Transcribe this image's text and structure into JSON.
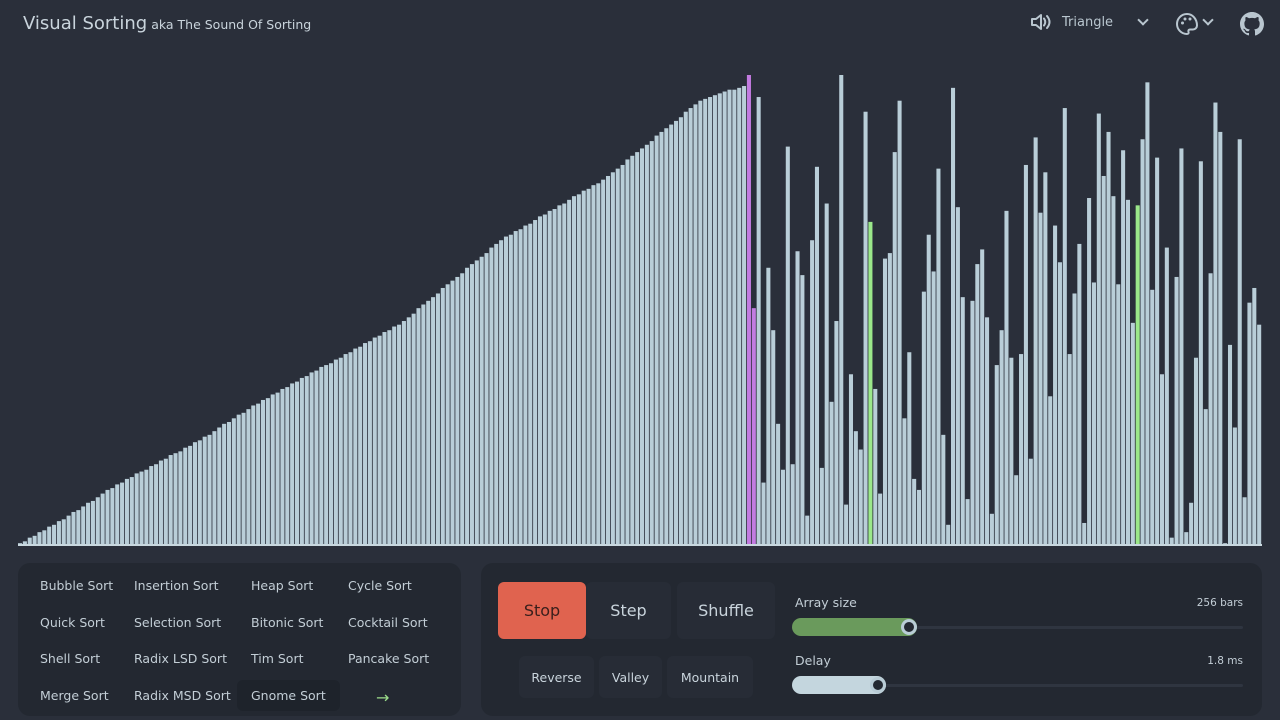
{
  "header": {
    "title": "Visual Sorting",
    "subtitle": "aka The Sound Of Sorting",
    "waveform": "Triangle",
    "icons": [
      "speaker-icon",
      "chevron-down-icon",
      "palette-icon",
      "github-icon"
    ]
  },
  "colors": {
    "background": "#2a2f3a",
    "bar": "#b9ced8",
    "compare": "#c27be0",
    "swap": "#9be88a",
    "stop": "#e0634f",
    "array_slider": "#6a9a5c"
  },
  "visualization": {
    "values": [
      1,
      2,
      4,
      5,
      7,
      8,
      10,
      11,
      13,
      14,
      16,
      18,
      19,
      21,
      23,
      24,
      26,
      28,
      30,
      31,
      33,
      34,
      36,
      37,
      39,
      40,
      41,
      43,
      44,
      46,
      47,
      49,
      50,
      51,
      53,
      54,
      56,
      57,
      59,
      60,
      62,
      64,
      66,
      67,
      69,
      71,
      72,
      74,
      76,
      77,
      79,
      80,
      82,
      83,
      85,
      86,
      88,
      89,
      91,
      92,
      94,
      95,
      97,
      98,
      99,
      101,
      102,
      104,
      105,
      107,
      108,
      110,
      111,
      113,
      114,
      116,
      117,
      119,
      120,
      122,
      124,
      126,
      129,
      131,
      133,
      135,
      137,
      140,
      142,
      144,
      146,
      148,
      151,
      153,
      155,
      157,
      159,
      162,
      164,
      166,
      168,
      169,
      171,
      172,
      174,
      175,
      177,
      179,
      180,
      182,
      183,
      185,
      186,
      188,
      190,
      191,
      193,
      194,
      196,
      197,
      199,
      201,
      203,
      205,
      207,
      210,
      212,
      214,
      216,
      218,
      220,
      223,
      225,
      227,
      229,
      231,
      233,
      236,
      238,
      240,
      242,
      243,
      244,
      245,
      246,
      247,
      248,
      248,
      249,
      250,
      256,
      129,
      244,
      34,
      151,
      117,
      66,
      41,
      217,
      44,
      160,
      147,
      16,
      166,
      206,
      42,
      186,
      78,
      122,
      256,
      22,
      93,
      62,
      52,
      236,
      176,
      85,
      28,
      156,
      159,
      214,
      242,
      69,
      105,
      36,
      30,
      138,
      169,
      149,
      205,
      60,
      11,
      249,
      184,
      135,
      25,
      133,
      153,
      161,
      124,
      17,
      98,
      117,
      182,
      102,
      38,
      104,
      207,
      47,
      222,
      181,
      203,
      81,
      174,
      154,
      238,
      104,
      137,
      164,
      12,
      189,
      143,
      235,
      201,
      225,
      190,
      142,
      215,
      188,
      121,
      185,
      221,
      252,
      139,
      211,
      93,
      162,
      4,
      146,
      216,
      7,
      23,
      102,
      209,
      74,
      148,
      241,
      225,
      1,
      109,
      64,
      221,
      26,
      132,
      140,
      120
    ],
    "max": 256,
    "purple_indices": [
      150,
      151
    ],
    "green_indices": [
      175,
      230
    ]
  },
  "sorts": {
    "items": [
      "Bubble Sort",
      "Insertion Sort",
      "Heap Sort",
      "Cycle Sort",
      "Quick Sort",
      "Selection Sort",
      "Bitonic Sort",
      "Cocktail Sort",
      "Shell Sort",
      "Radix LSD Sort",
      "Tim Sort",
      "Pancake Sort",
      "Merge Sort",
      "Radix MSD Sort",
      "Gnome Sort",
      "→"
    ],
    "active": "Gnome Sort"
  },
  "controls": {
    "stop": "Stop",
    "step": "Step",
    "shuffle": "Shuffle",
    "reverse": "Reverse",
    "valley": "Valley",
    "mountain": "Mountain",
    "array_size": {
      "label": "Array size",
      "value": "256 bars",
      "fraction": 0.26
    },
    "delay": {
      "label": "Delay",
      "value": "1.8 ms",
      "fraction": 0.19
    }
  }
}
